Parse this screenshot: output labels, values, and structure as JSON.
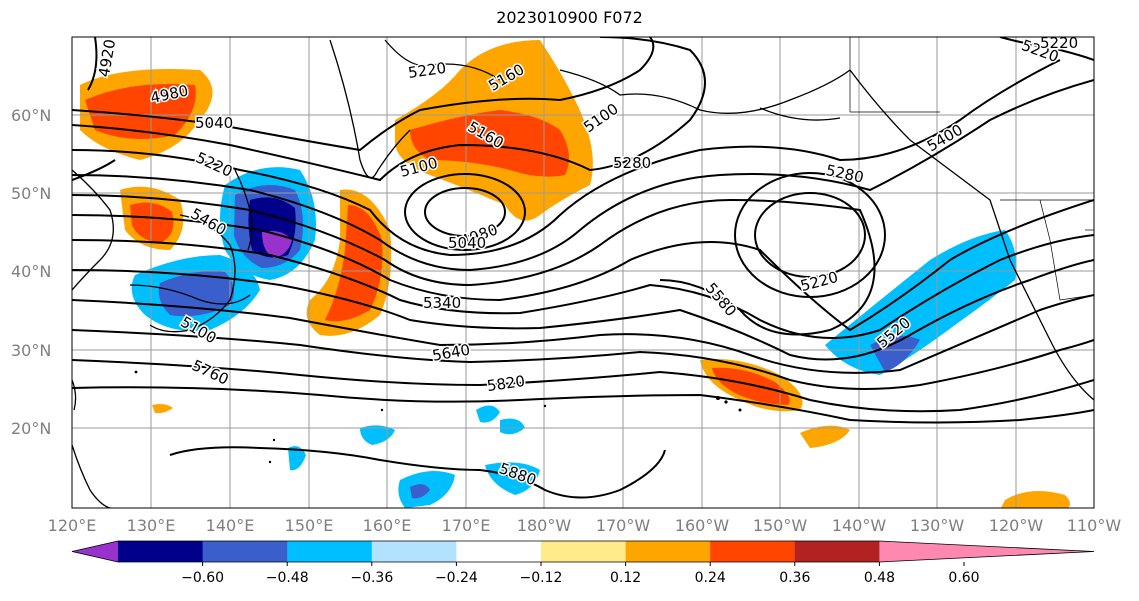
{
  "title": "2023010900 F072",
  "map": {
    "lat_ticks": [
      "60°N",
      "50°N",
      "40°N",
      "30°N",
      "20°N"
    ],
    "lon_ticks": [
      "120°E",
      "130°E",
      "140°E",
      "150°E",
      "160°E",
      "170°E",
      "180°W",
      "170°W",
      "160°W",
      "150°W",
      "140°W",
      "130°W",
      "120°W",
      "110°W"
    ],
    "contour_labels": [
      "4920",
      "4980",
      "5040",
      "5220",
      "5460",
      "5100",
      "5220",
      "5160",
      "5100",
      "5160",
      "5100",
      "4980",
      "5040",
      "5280",
      "5280",
      "5220",
      "5340",
      "5580",
      "5640",
      "5760",
      "5820",
      "5880",
      "5400",
      "5220",
      "5220",
      "5520",
      "5100"
    ]
  },
  "colorbar": {
    "ticks": [
      "−0.60",
      "−0.48",
      "−0.36",
      "−0.24",
      "−0.12",
      "0.12",
      "0.24",
      "0.36",
      "0.48",
      "0.60"
    ],
    "colors": [
      "#9932cc",
      "#00008b",
      "#3a5fcd",
      "#00bfff",
      "#b2e2ff",
      "#ffffff",
      "#ffeb8a",
      "#ffa500",
      "#ff4500",
      "#b22222",
      "#ff88b0"
    ]
  },
  "colors": {
    "positive_anomaly": "#ffa500",
    "negative_anomaly": "#00bfff",
    "contour": "#000000",
    "grid": "#9a9a9a"
  }
}
